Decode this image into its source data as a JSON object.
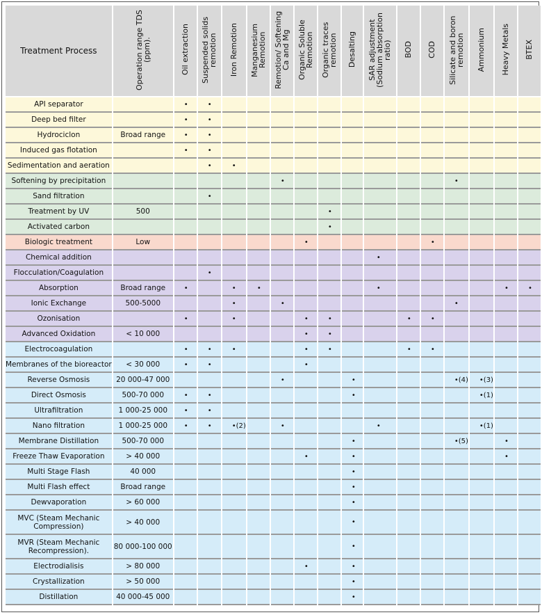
{
  "header": [
    "Treatment Process",
    "Operation range TDS (ppm).",
    "Oil extraction",
    "Suspended solids remotion",
    "Iron Remotion",
    "Manganesium Remotion",
    "Remotion/ Softening Ca and Mg",
    "Organic Soluble Remotion",
    "Organic traces remotion",
    "Desalting",
    "SAR adjustment (Sodium absorption ratio)",
    "BOD",
    "COD",
    "Silicate and boron remotion",
    "Ammonium",
    "Heavy Metals",
    "BTEX"
  ],
  "group_colors": {
    "physical": "#fdf8da",
    "filtration": "#dcebdc",
    "biologic": "#f9d9cd",
    "chemical": "#d9d2ec",
    "membrane": "#d5ecf9"
  },
  "rows": [
    {
      "name": "API separator",
      "tds": "",
      "group": "physical",
      "marks": {
        "0": "•",
        "1": "•"
      }
    },
    {
      "name": "Deep bed filter",
      "tds": "",
      "group": "physical",
      "marks": {
        "0": "•",
        "1": "•"
      }
    },
    {
      "name": "Hydrociclon",
      "tds": "Broad range",
      "group": "physical",
      "marks": {
        "0": "•",
        "1": "•"
      }
    },
    {
      "name": "Induced gas flotation",
      "tds": "",
      "group": "physical",
      "marks": {
        "0": "•",
        "1": "•"
      }
    },
    {
      "name": "Sedimentation and aeration",
      "tds": "",
      "group": "physical",
      "marks": {
        "1": "•",
        "2": "•"
      }
    },
    {
      "name": "Softening by precipitation",
      "tds": "",
      "group": "filtration",
      "marks": {
        "4": "•",
        "11": "•"
      }
    },
    {
      "name": "Sand filtration",
      "tds": "",
      "group": "filtration",
      "marks": {
        "1": "•"
      }
    },
    {
      "name": "Treatment by UV",
      "tds": "500",
      "group": "filtration",
      "marks": {
        "6": "•"
      }
    },
    {
      "name": "Activated carbon",
      "tds": "",
      "group": "filtration",
      "marks": {
        "6": "•"
      }
    },
    {
      "name": "Biologic treatment",
      "tds": "Low",
      "group": "biologic",
      "marks": {
        "5": "•",
        "10": "•"
      }
    },
    {
      "name": "Chemical addition",
      "tds": "",
      "group": "chemical",
      "marks": {
        "8": "•"
      }
    },
    {
      "name": "Flocculation/Coagulation",
      "tds": "",
      "group": "chemical",
      "marks": {
        "1": "•"
      }
    },
    {
      "name": "Absorption",
      "tds": "Broad range",
      "group": "chemical",
      "marks": {
        "0": "•",
        "2": "•",
        "3": "•",
        "8": "•",
        "13": "•",
        "14": "•"
      }
    },
    {
      "name": "Ionic Exchange",
      "tds": "500-5000",
      "group": "chemical",
      "marks": {
        "2": "•",
        "4": "•",
        "11": "•"
      }
    },
    {
      "name": "Ozonisation",
      "tds": "",
      "group": "chemical",
      "marks": {
        "0": "•",
        "2": "•",
        "5": "•",
        "6": "•",
        "9": "•",
        "10": "•"
      }
    },
    {
      "name": "Advanced Oxidation",
      "tds": "< 10 000",
      "group": "chemical",
      "marks": {
        "5": "•",
        "6": "•"
      }
    },
    {
      "name": "Electrocoagulation",
      "tds": "",
      "group": "membrane",
      "marks": {
        "0": "•",
        "1": "•",
        "2": "•",
        "5": "•",
        "6": "•",
        "9": "•",
        "10": "•"
      }
    },
    {
      "name": "Membranes of the bioreactor",
      "tds": "< 30 000",
      "group": "membrane",
      "marks": {
        "0": "•",
        "1": "•",
        "5": "•"
      }
    },
    {
      "name": "Reverse Osmosis",
      "tds": "20 000-47 000",
      "group": "membrane",
      "marks": {
        "4": "•",
        "7": "•",
        "11": "•(4)",
        "12": "•(3)"
      }
    },
    {
      "name": "Direct Osmosis",
      "tds": "500-70 000",
      "group": "membrane",
      "marks": {
        "0": "•",
        "1": "•",
        "7": "•",
        "12": "•(1)"
      }
    },
    {
      "name": "Ultrafiltration",
      "tds": "1 000-25 000",
      "group": "membrane",
      "marks": {
        "0": "•",
        "1": "•"
      }
    },
    {
      "name": "Nano filtration",
      "tds": "1 000-25 000",
      "group": "membrane",
      "marks": {
        "0": "•",
        "1": "•",
        "2": "•(2)",
        "4": "•",
        "8": "•",
        "12": "•(1)"
      }
    },
    {
      "name": "Membrane Distillation",
      "tds": "500-70 000",
      "group": "membrane",
      "marks": {
        "7": "•",
        "11": "•(5)",
        "13": "•"
      }
    },
    {
      "name": "Freeze Thaw Evaporation",
      "tds": "> 40 000",
      "group": "membrane",
      "marks": {
        "5": "•",
        "7": "•",
        "13": "•"
      }
    },
    {
      "name": "Multi Stage Flash",
      "tds": "40 000",
      "group": "membrane",
      "marks": {
        "7": "•"
      }
    },
    {
      "name": "Multi Flash effect",
      "tds": "Broad range",
      "group": "membrane",
      "marks": {
        "7": "•"
      }
    },
    {
      "name": "Dewvaporation",
      "tds": "> 60 000",
      "group": "membrane",
      "marks": {
        "7": "•"
      }
    },
    {
      "name": "MVC (Steam Mechanic Compression)",
      "tds": "> 40 000",
      "group": "membrane",
      "tall": true,
      "marks": {
        "7": "•"
      }
    },
    {
      "name": "MVR (Steam Mechanic Recompression).",
      "tds": "80 000-100 000",
      "group": "membrane",
      "tall": true,
      "marks": {
        "7": "•"
      }
    },
    {
      "name": "Electrodialisis",
      "tds": "> 80 000",
      "group": "membrane",
      "marks": {
        "5": "•",
        "7": "•"
      }
    },
    {
      "name": "Crystallization",
      "tds": "> 50 000",
      "group": "membrane",
      "marks": {
        "7": "•"
      }
    },
    {
      "name": "Distillation",
      "tds": "40 000-45 000",
      "group": "membrane",
      "marks": {
        "7": "•"
      }
    }
  ]
}
